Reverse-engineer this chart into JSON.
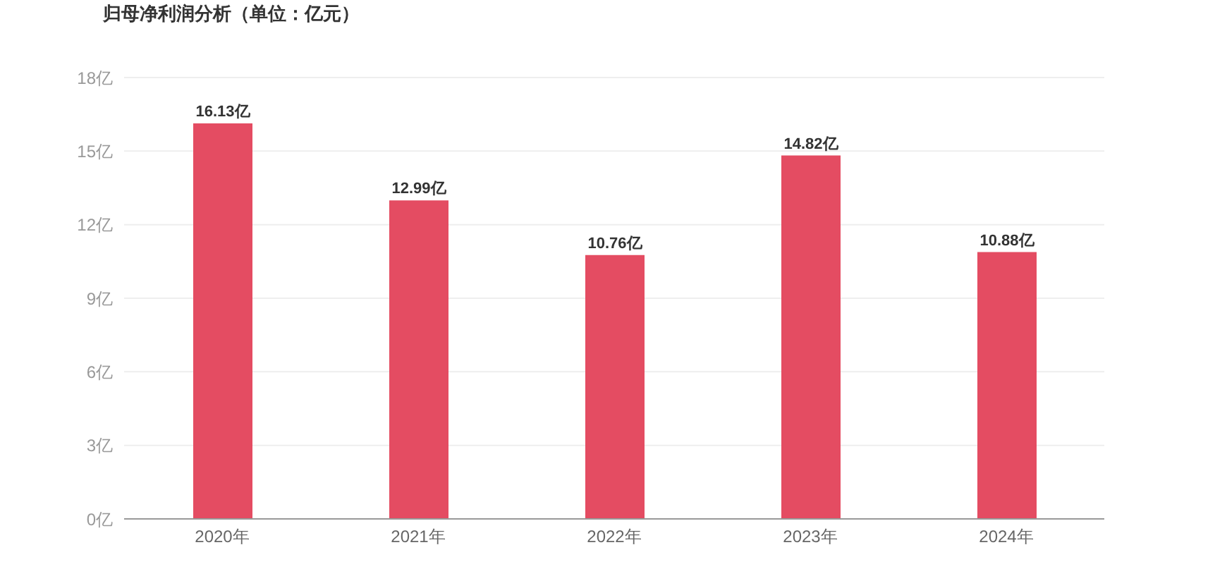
{
  "chart_data": {
    "type": "bar",
    "title": "归母净利润分析（单位：亿元）",
    "categories": [
      "2020年",
      "2021年",
      "2022年",
      "2023年",
      "2024年"
    ],
    "values": [
      16.13,
      12.99,
      10.76,
      14.82,
      10.88
    ],
    "value_labels": [
      "16.13亿",
      "12.99亿",
      "10.76亿",
      "14.82亿",
      "10.88亿"
    ],
    "color": "#e44c62",
    "ylim": [
      0,
      18
    ],
    "yticks": [
      {
        "value": 0,
        "label": "0亿"
      },
      {
        "value": 3,
        "label": "3亿"
      },
      {
        "value": 6,
        "label": "6亿"
      },
      {
        "value": 9,
        "label": "9亿"
      },
      {
        "value": 12,
        "label": "12亿"
      },
      {
        "value": 15,
        "label": "15亿"
      },
      {
        "value": 18,
        "label": "18亿"
      }
    ],
    "grid": "y",
    "legend": false
  }
}
